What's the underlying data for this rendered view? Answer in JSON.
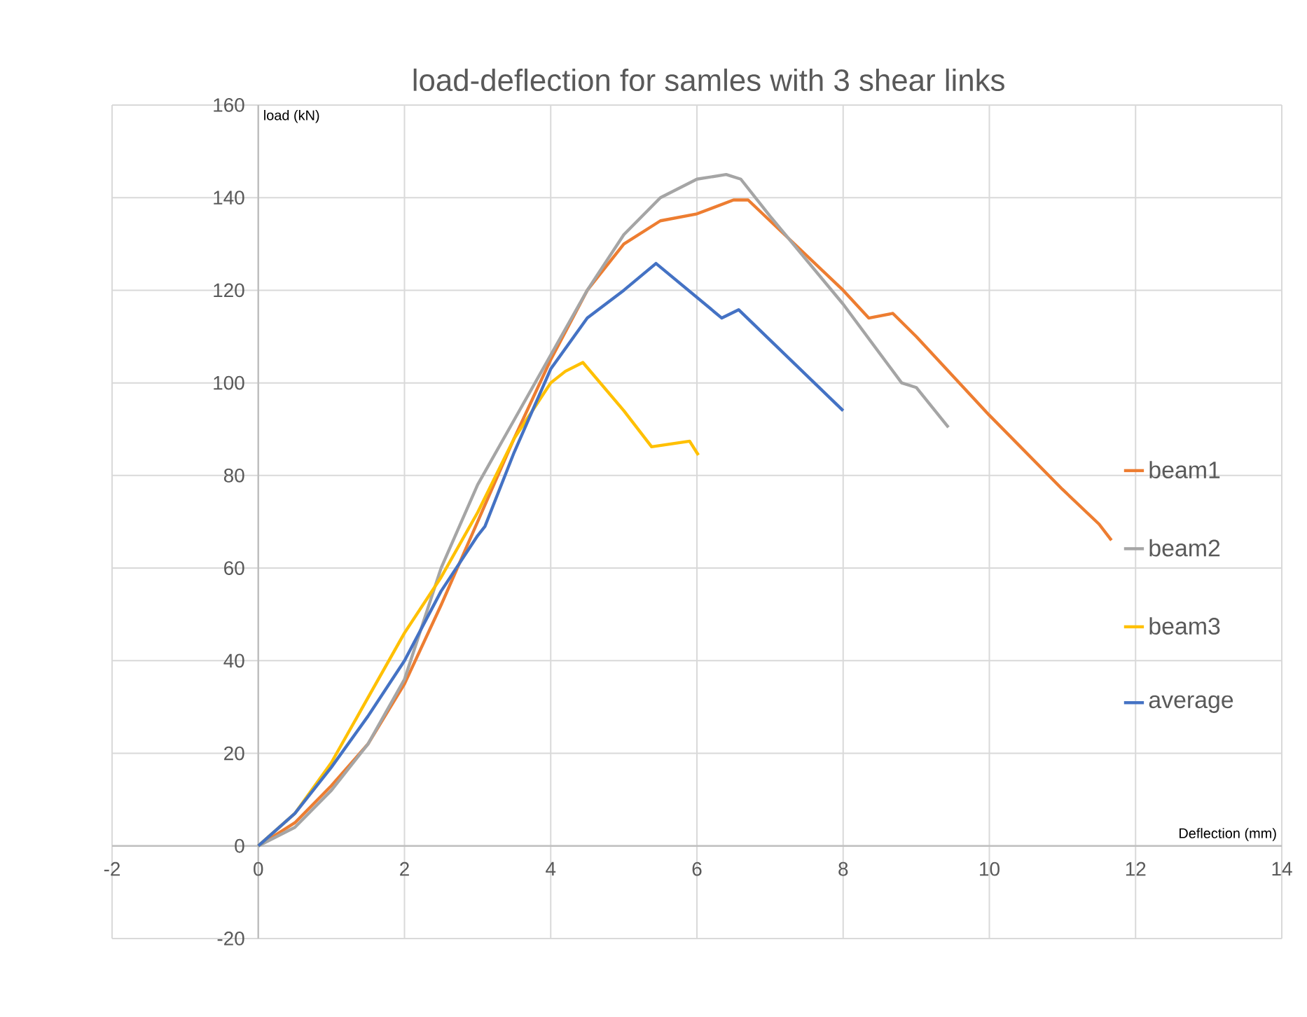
{
  "chart_data": {
    "type": "line",
    "title": "load-deflection for samles with 3 shear links",
    "xlabel": "Deflection (mm)",
    "ylabel": "load (kN)",
    "xlim": [
      -2,
      14
    ],
    "xticks": [
      -2,
      0,
      2,
      4,
      6,
      8,
      10,
      12,
      14
    ],
    "ylim": [
      -20,
      160
    ],
    "yticks": [
      -20,
      0,
      20,
      40,
      60,
      80,
      100,
      120,
      140,
      160
    ],
    "grid": true,
    "legend": "right",
    "marker": "none",
    "line_style": "solid",
    "series": [
      {
        "name": "beam1",
        "color": "#ed7d31",
        "x": [
          0,
          0.5,
          1,
          1.5,
          2,
          2.5,
          3,
          3.5,
          4,
          4.5,
          5,
          5.5,
          6,
          6.5,
          6.7,
          7,
          8,
          8.35,
          8.68,
          9,
          10,
          11,
          11.5,
          11.67
        ],
        "values": [
          0,
          5,
          13,
          22,
          35,
          52,
          70,
          88,
          105,
          120,
          130,
          135,
          136.5,
          139.5,
          139.5,
          135,
          120,
          114,
          115,
          110,
          93,
          77,
          69.5,
          66
        ]
      },
      {
        "name": "beam2",
        "color": "#a5a5a5",
        "x": [
          0,
          0.5,
          1,
          1.5,
          2,
          2.5,
          3,
          3.5,
          4,
          4.5,
          5,
          5.5,
          6,
          6.4,
          6.6,
          7,
          8,
          8.8,
          9,
          9.44
        ],
        "values": [
          0,
          4,
          12,
          22,
          36,
          60,
          78,
          92,
          106,
          120,
          132,
          140,
          144,
          145,
          144,
          136,
          117,
          100,
          99,
          90.4
        ]
      },
      {
        "name": "beam3",
        "color": "#ffc000",
        "x": [
          0,
          0.5,
          1,
          1.5,
          2,
          2.5,
          3,
          3.5,
          4,
          4.2,
          4.44,
          5,
          5.38,
          5.9,
          6.02
        ],
        "values": [
          0,
          7,
          18,
          32,
          46,
          58,
          72,
          88,
          100,
          102.5,
          104.4,
          94,
          86.2,
          87.4,
          84.4
        ]
      },
      {
        "name": "average",
        "color": "#4472c4",
        "x": [
          0,
          0.5,
          1,
          1.5,
          2,
          2.5,
          3,
          3.1,
          3.5,
          4,
          4.5,
          5,
          5.44,
          6.34,
          6.57,
          8
        ],
        "values": [
          0,
          7,
          17,
          28,
          40,
          55,
          67,
          69,
          85,
          103,
          114,
          120,
          125.8,
          114,
          115.8,
          94
        ]
      }
    ]
  }
}
